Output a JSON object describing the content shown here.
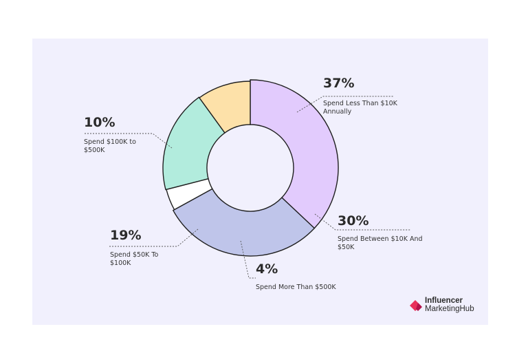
{
  "chart_data": {
    "type": "pie",
    "variant": "donut",
    "slices": [
      {
        "percent_label": "37%",
        "value": 37,
        "label": "Spend Less Than $10K Annually",
        "color": "#e2cbfd"
      },
      {
        "percent_label": "30%",
        "value": 30,
        "label": "Spend Between $10K And $50K",
        "color": "#bfc5ea"
      },
      {
        "percent_label": "4%",
        "value": 4,
        "label": "Spend More Than $500K",
        "color": "#ffffff"
      },
      {
        "percent_label": "19%",
        "value": 19,
        "label": "Spend $50K To $100K",
        "color": "#b2ecdd"
      },
      {
        "percent_label": "10%",
        "value": 10,
        "label": "Spend $100K to $500K",
        "color": "#fde1a9"
      }
    ],
    "background_color": "#f1f0fd"
  },
  "branding": {
    "logo_line1": "Influencer",
    "logo_line2": "MarketingHub",
    "logo_color": "#e8305a"
  }
}
